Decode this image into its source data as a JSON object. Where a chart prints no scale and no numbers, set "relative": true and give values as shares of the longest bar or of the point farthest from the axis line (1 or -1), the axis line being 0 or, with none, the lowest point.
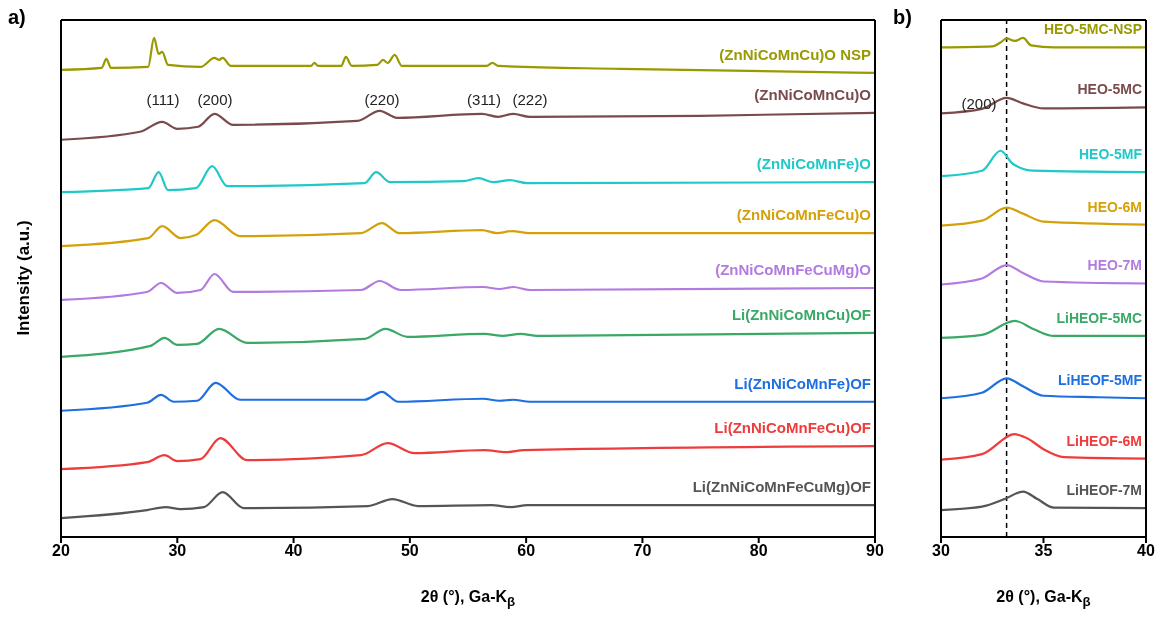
{
  "chart_data": [
    {
      "type": "line",
      "title": "a)",
      "xlabel": "2θ (°), Ga-K$_{β}$",
      "ylabel": "Intensity (a.u.)",
      "relative": true,
      "xlim": [
        20,
        90
      ],
      "xticks": [
        20,
        30,
        40,
        50,
        60,
        70,
        80,
        90
      ],
      "legend": false,
      "marker": "none",
      "annotations": [
        "(111)",
        "(200)",
        "(220)",
        "(311)",
        "(222)"
      ],
      "series": [
        {
          "name": "(ZnNiCoMnCu)O NSP",
          "color": "#999900",
          "x": [
            20,
            23.5,
            23.9,
            24.3,
            27.5,
            28.0,
            28.4,
            28.7,
            29.2,
            32,
            33.2,
            33.6,
            33.9,
            34.6,
            41.5,
            41.8,
            42.1,
            44.1,
            44.5,
            45,
            47.2,
            47.7,
            48.1,
            48.7,
            49.3,
            56.6,
            57.1,
            57.6,
            68.1,
            90
          ],
          "values": [
            0.936,
            0.94,
            0.958,
            0.94,
            0.942,
            1.0,
            0.968,
            0.972,
            0.946,
            0.942,
            0.96,
            0.956,
            0.96,
            0.944,
            0.944,
            0.95,
            0.944,
            0.944,
            0.962,
            0.944,
            0.946,
            0.956,
            0.95,
            0.966,
            0.944,
            0.944,
            0.95,
            0.944,
            0.938,
            0.93
          ]
        },
        {
          "name": "(ZnNiCoMnCu)O",
          "color": "#7a4b4b",
          "x": [
            20,
            26.8,
            28.7,
            30.0,
            31.8,
            33.2,
            34.8,
            45.5,
            47.4,
            48.9,
            56.2,
            57.6,
            58.9,
            60.3,
            75,
            90
          ],
          "values": [
            0.796,
            0.812,
            0.832,
            0.818,
            0.822,
            0.848,
            0.826,
            0.834,
            0.854,
            0.84,
            0.848,
            0.842,
            0.848,
            0.842,
            0.844,
            0.85
          ]
        },
        {
          "name": "(ZnNiCoMnFe)O",
          "color": "#20c8c8",
          "x": [
            20,
            27.5,
            28.4,
            29.2,
            31.6,
            33.0,
            34.3,
            46.1,
            47.1,
            48.3,
            54.6,
            55.9,
            57.2,
            58.6,
            60.1,
            90
          ],
          "values": [
            0.691,
            0.699,
            0.731,
            0.695,
            0.699,
            0.743,
            0.703,
            0.709,
            0.731,
            0.711,
            0.713,
            0.719,
            0.711,
            0.715,
            0.709,
            0.711
          ]
        },
        {
          "name": "(ZnNiCoMnFeCu)O",
          "color": "#d4a10a",
          "x": [
            20,
            27.5,
            28.7,
            30.3,
            31.6,
            33.2,
            35.4,
            45.8,
            47.6,
            49.1,
            56.2,
            57.5,
            58.8,
            60.3,
            90
          ],
          "values": [
            0.583,
            0.599,
            0.623,
            0.599,
            0.605,
            0.635,
            0.603,
            0.609,
            0.629,
            0.609,
            0.615,
            0.609,
            0.613,
            0.609,
            0.609
          ]
        },
        {
          "name": "(ZnNiCoMnFeCuMg)O",
          "color": "#b37ae0",
          "x": [
            20,
            27.4,
            28.6,
            30.0,
            32.0,
            33.2,
            34.8,
            45.8,
            47.4,
            49.2,
            56.3,
            57.7,
            58.9,
            60.3,
            90
          ],
          "values": [
            0.475,
            0.491,
            0.509,
            0.489,
            0.495,
            0.527,
            0.491,
            0.495,
            0.513,
            0.495,
            0.501,
            0.497,
            0.501,
            0.495,
            0.499
          ]
        },
        {
          "name": "Li(ZnNiCoMnCu)OF",
          "color": "#3aa867",
          "x": [
            20,
            27.7,
            28.9,
            30.0,
            31.7,
            33.6,
            36.0,
            46.1,
            47.9,
            49.8,
            56.4,
            58.0,
            59.5,
            61,
            90
          ],
          "values": [
            0.361,
            0.383,
            0.399,
            0.385,
            0.387,
            0.417,
            0.389,
            0.397,
            0.417,
            0.401,
            0.407,
            0.403,
            0.407,
            0.403,
            0.409
          ]
        },
        {
          "name": "Li(ZnNiCoMnFe)OF",
          "color": "#1e6fe0",
          "x": [
            20,
            27.4,
            28.6,
            29.7,
            31.7,
            33.3,
            35.4,
            46.1,
            47.6,
            49.0,
            56.3,
            57.7,
            58.9,
            60.3,
            90
          ],
          "values": [
            0.253,
            0.269,
            0.285,
            0.271,
            0.273,
            0.309,
            0.275,
            0.275,
            0.291,
            0.271,
            0.277,
            0.273,
            0.275,
            0.271,
            0.271
          ]
        },
        {
          "name": "Li(ZnNiCoMnFeCu)OF",
          "color": "#ee3c3c",
          "x": [
            20,
            27.4,
            28.9,
            30.0,
            32.0,
            33.7,
            36.0,
            45.8,
            48.1,
            50.4,
            56.4,
            58.3,
            59.8,
            90
          ],
          "values": [
            0.136,
            0.15,
            0.164,
            0.152,
            0.156,
            0.198,
            0.154,
            0.164,
            0.188,
            0.168,
            0.174,
            0.17,
            0.174,
            0.182
          ]
        },
        {
          "name": "Li(ZnNiCoMnFeCuMg)OF",
          "color": "#555555",
          "x": [
            20,
            27.4,
            29.0,
            30.3,
            32.3,
            33.9,
            35.7,
            46.4,
            48.5,
            50.7,
            57.0,
            58.7,
            60.1,
            90
          ],
          "values": [
            0.038,
            0.054,
            0.06,
            0.056,
            0.06,
            0.09,
            0.058,
            0.062,
            0.076,
            0.062,
            0.064,
            0.06,
            0.064,
            0.064
          ]
        }
      ]
    },
    {
      "type": "line",
      "title": "b)",
      "xlabel": "2θ (°), Ga-K$_{β}$",
      "relative": true,
      "xlim": [
        30,
        40
      ],
      "xticks": [
        30,
        35,
        40
      ],
      "legend": false,
      "marker": "none",
      "ref_lines": [
        {
          "axis": "x",
          "value": 33.2,
          "line_style": "dashed",
          "color": "#000000"
        }
      ],
      "annotations": [
        "(200)"
      ],
      "series": [
        {
          "name": "HEO-5MC-NSP",
          "color": "#999900",
          "x": [
            30,
            32.5,
            32.9,
            33.2,
            33.6,
            34.0,
            34.4,
            35.5,
            40
          ],
          "values": [
            0.981,
            0.983,
            0.991,
            0.999,
            0.994,
            1.0,
            0.985,
            0.981,
            0.981
          ]
        },
        {
          "name": "HEO-5MC",
          "color": "#7a4b4b",
          "x": [
            30,
            32,
            33.2,
            34,
            35,
            40
          ],
          "values": [
            0.849,
            0.858,
            0.88,
            0.869,
            0.859,
            0.861
          ]
        },
        {
          "name": "HEO-5MF",
          "color": "#20c8c8",
          "x": [
            30,
            32,
            32.9,
            33.5,
            34.5,
            40
          ],
          "values": [
            0.723,
            0.734,
            0.774,
            0.748,
            0.734,
            0.731
          ]
        },
        {
          "name": "HEO-6M",
          "color": "#d4a10a",
          "x": [
            30,
            32,
            33.2,
            34,
            35,
            40
          ],
          "values": [
            0.624,
            0.634,
            0.66,
            0.648,
            0.632,
            0.626
          ]
        },
        {
          "name": "HEO-7M",
          "color": "#b37ae0",
          "x": [
            30,
            32,
            33.2,
            34,
            35,
            40
          ],
          "values": [
            0.506,
            0.518,
            0.545,
            0.529,
            0.512,
            0.508
          ]
        },
        {
          "name": "LiHEOF-5MC",
          "color": "#3aa867",
          "x": [
            30,
            32,
            33.6,
            34.5,
            35.5,
            40
          ],
          "values": [
            0.399,
            0.405,
            0.433,
            0.417,
            0.403,
            0.403
          ]
        },
        {
          "name": "LiHEOF-5MF",
          "color": "#1e6fe0",
          "x": [
            30,
            32,
            33.2,
            34,
            35,
            37.7,
            40
          ],
          "values": [
            0.278,
            0.289,
            0.318,
            0.302,
            0.283,
            0.28,
            0.278
          ]
        },
        {
          "name": "LiHEOF-6M",
          "color": "#ee3c3c",
          "x": [
            30,
            32,
            33.6,
            34.2,
            35,
            36,
            40
          ],
          "values": [
            0.155,
            0.166,
            0.206,
            0.198,
            0.176,
            0.16,
            0.157
          ]
        },
        {
          "name": "LiHEOF-7M",
          "color": "#555555",
          "x": [
            30,
            32,
            33.1,
            34.0,
            34.7,
            35.5,
            40
          ],
          "values": [
            0.054,
            0.061,
            0.076,
            0.091,
            0.076,
            0.059,
            0.058
          ]
        }
      ]
    }
  ]
}
